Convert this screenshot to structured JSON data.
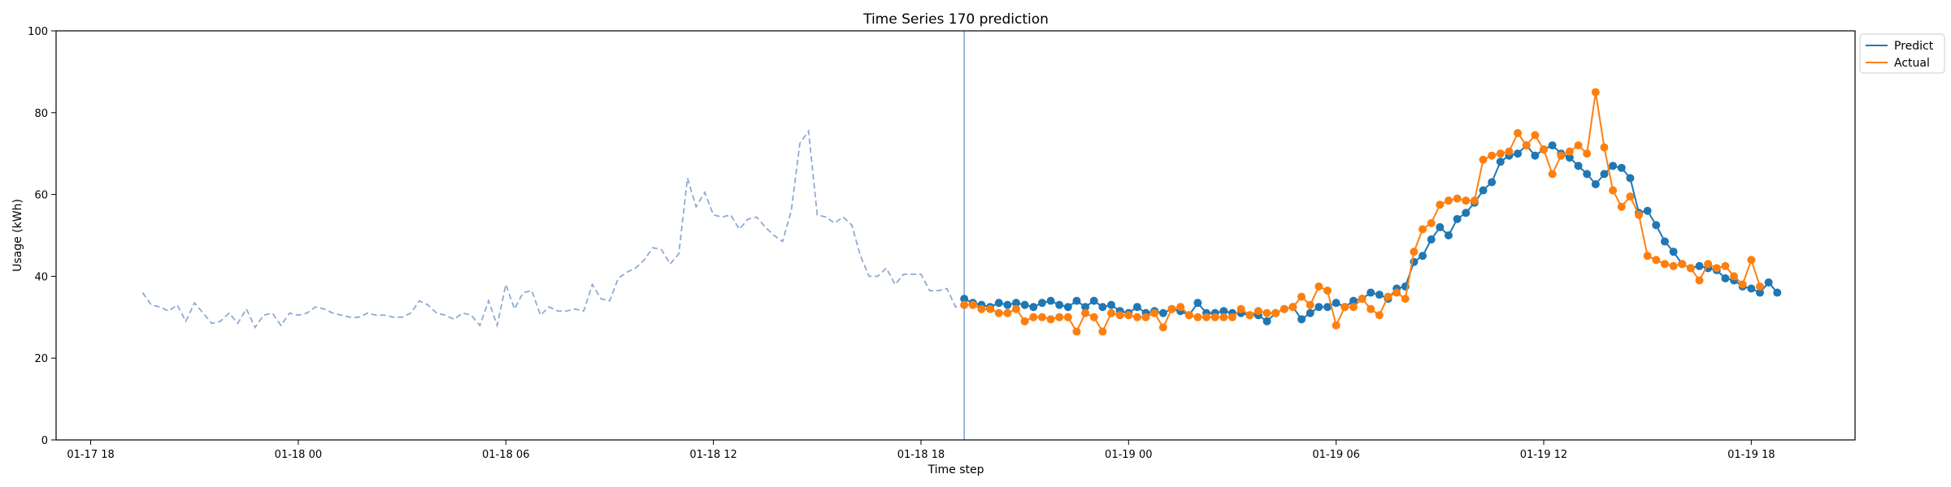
{
  "chart_data": {
    "type": "line",
    "title": "Time Series 170 prediction",
    "xlabel": "Time step",
    "ylabel": "Usage (kWh)",
    "ylim": [
      0,
      100
    ],
    "yticks": [
      0,
      20,
      40,
      60,
      80,
      100
    ],
    "x_unit": "hours",
    "xlim": [
      -7,
      45
    ],
    "xticks": [
      {
        "x": -6,
        "label": "01-17 18"
      },
      {
        "x": 0,
        "label": "01-18 00"
      },
      {
        "x": 6,
        "label": "01-18 06"
      },
      {
        "x": 12,
        "label": "01-18 12"
      },
      {
        "x": 18,
        "label": "01-18 18"
      },
      {
        "x": 24,
        "label": "01-19 00"
      },
      {
        "x": 30,
        "label": "01-19 06"
      },
      {
        "x": 36,
        "label": "01-19 12"
      },
      {
        "x": 42,
        "label": "01-19 18"
      }
    ],
    "split_x": 19.25,
    "history": {
      "start": -4.5,
      "step": 0.25,
      "values": [
        36,
        33,
        32.5,
        31.5,
        33,
        29,
        33.5,
        31,
        28.5,
        29,
        31,
        28.5,
        32,
        27.5,
        30.5,
        31,
        28,
        31,
        30.5,
        31,
        32.5,
        32,
        31,
        30.5,
        30,
        30,
        31,
        30.5,
        30.5,
        30,
        30,
        31,
        34,
        33,
        31,
        30.5,
        29.5,
        31,
        30.5,
        28,
        34,
        28,
        38,
        32,
        36,
        36.5,
        30.5,
        32.5,
        31.5,
        31.5,
        32,
        31.5,
        38,
        34.5,
        34,
        39.5,
        41,
        42,
        44,
        47,
        46.5,
        43,
        45.5,
        64,
        57,
        60.5,
        55,
        54.5,
        55,
        51.5,
        54,
        54.5,
        52,
        50,
        48.5,
        56,
        72.5,
        75.5,
        55,
        54.5,
        53,
        54.5,
        52.5,
        45,
        40,
        40,
        42,
        38,
        40.5,
        40.5,
        40.5,
        36.5,
        36.5,
        37,
        32.5,
        33,
        33.5
      ]
    },
    "series": [
      {
        "name": "Predict",
        "color": "#1f77b4",
        "start": 19.25,
        "step": 0.25,
        "values": [
          34.5,
          33.5,
          33,
          32.5,
          33.5,
          33,
          33.5,
          33,
          32.5,
          33.5,
          34,
          33,
          32.5,
          34,
          32.5,
          34,
          32.5,
          33,
          31.5,
          31,
          32.5,
          31,
          31.5,
          31,
          32,
          31.5,
          30.5,
          33.5,
          31,
          31,
          31.5,
          31,
          31,
          30.5,
          30.5,
          29,
          31,
          32,
          32.5,
          29.5,
          31,
          32.5,
          32.5,
          33.5,
          32.5,
          34,
          34.5,
          36,
          35.5,
          34.5,
          37,
          37.5,
          43.5,
          45,
          49,
          52,
          50,
          54,
          55.5,
          58,
          61,
          63,
          68,
          69.5,
          70,
          72,
          69.5,
          71,
          72,
          70,
          69,
          67,
          65,
          62.5,
          65,
          67,
          66.5,
          64,
          55.5,
          56,
          52.5,
          48.5,
          46,
          43,
          42,
          42.5,
          42,
          41.5,
          39.5,
          39,
          37.5,
          37,
          36,
          38.5,
          36
        ]
      },
      {
        "name": "Actual",
        "color": "#ff7f0e",
        "start": 19.25,
        "step": 0.25,
        "values": [
          33,
          33,
          32,
          32,
          31,
          31,
          32,
          29,
          30,
          30,
          29.5,
          30,
          30,
          26.5,
          31,
          30,
          26.5,
          31,
          30.5,
          30.5,
          30,
          30,
          31,
          27.5,
          32,
          32.5,
          30.5,
          30,
          30,
          30,
          30,
          30,
          32,
          30.5,
          31.5,
          31,
          31,
          32,
          32.5,
          35,
          33,
          37.5,
          36.5,
          28,
          32.5,
          32.5,
          34.5,
          32,
          30.5,
          35,
          36,
          34.5,
          46,
          51.5,
          53,
          57.5,
          58.5,
          59,
          58.5,
          58.5,
          68.5,
          69.5,
          70,
          70.5,
          75,
          72,
          74.5,
          71,
          65,
          69.5,
          70.5,
          72,
          70,
          85,
          71.5,
          61,
          57,
          59.5,
          55,
          45,
          44,
          43,
          42.5,
          43,
          42,
          39,
          43,
          42,
          42.5,
          40,
          38,
          44,
          37.5
        ]
      }
    ],
    "legend": {
      "position": "top-right",
      "entries": [
        "Predict",
        "Actual"
      ]
    },
    "grid": false
  }
}
